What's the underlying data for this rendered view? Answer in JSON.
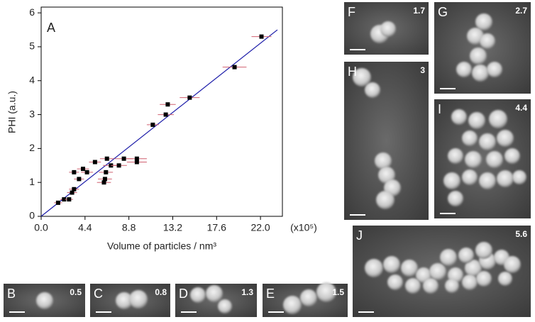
{
  "chart_data": {
    "type": "scatter",
    "panel_label": "A",
    "x_label": "Volume of particles / nm³",
    "y_label": "PHI (a.u.)",
    "x_unit_note": "(x10⁵)",
    "x": [
      1.7,
      2.3,
      2.8,
      3.1,
      3.3,
      3.3,
      3.8,
      4.2,
      4.6,
      5.4,
      6.3,
      6.4,
      6.5,
      6.6,
      7.0,
      7.8,
      8.3,
      9.6,
      9.6,
      11.2,
      12.5,
      12.7,
      14.9,
      19.4,
      22.1
    ],
    "values": [
      0.4,
      0.5,
      0.5,
      0.7,
      0.8,
      1.3,
      1.1,
      1.4,
      1.3,
      1.6,
      1.0,
      1.1,
      1.3,
      1.7,
      1.5,
      1.5,
      1.7,
      1.7,
      1.6,
      2.7,
      3.0,
      3.3,
      3.5,
      4.4,
      5.3
    ],
    "x_errors": [
      0.4,
      0.4,
      0.4,
      0.5,
      0.5,
      0.5,
      0.5,
      0.6,
      0.6,
      0.6,
      0.7,
      0.7,
      0.7,
      0.7,
      0.8,
      0.8,
      0.9,
      1.0,
      1.0,
      0.6,
      0.8,
      0.8,
      1.0,
      1.2,
      1.0
    ],
    "color": "#000000",
    "error_color": "#d06070",
    "fit_line": {
      "x": [
        0,
        23.7
      ],
      "y": [
        0,
        5.5
      ],
      "color": "#1a1aa8"
    },
    "xlim": [
      0,
      24.2
    ],
    "ylim": [
      0,
      6.17
    ],
    "xticks": [
      {
        "value": 0,
        "label": "0.0"
      },
      4.4,
      8.8,
      13.2,
      17.6,
      {
        "value": 22,
        "label": "22.0"
      }
    ],
    "yticks": [
      0,
      1,
      2,
      3,
      4,
      5,
      6
    ]
  },
  "panels": [
    {
      "label": "B",
      "value": 0.5
    },
    {
      "label": "C",
      "value": 0.8
    },
    {
      "label": "D",
      "value": 1.3
    },
    {
      "label": "E",
      "value": 1.5
    },
    {
      "label": "F",
      "value": 1.7
    },
    {
      "label": "G",
      "value": 2.7
    },
    {
      "label": "H",
      "value": 3.0
    },
    {
      "label": "I",
      "value": 4.4
    },
    {
      "label": "J",
      "value": 5.6
    }
  ]
}
